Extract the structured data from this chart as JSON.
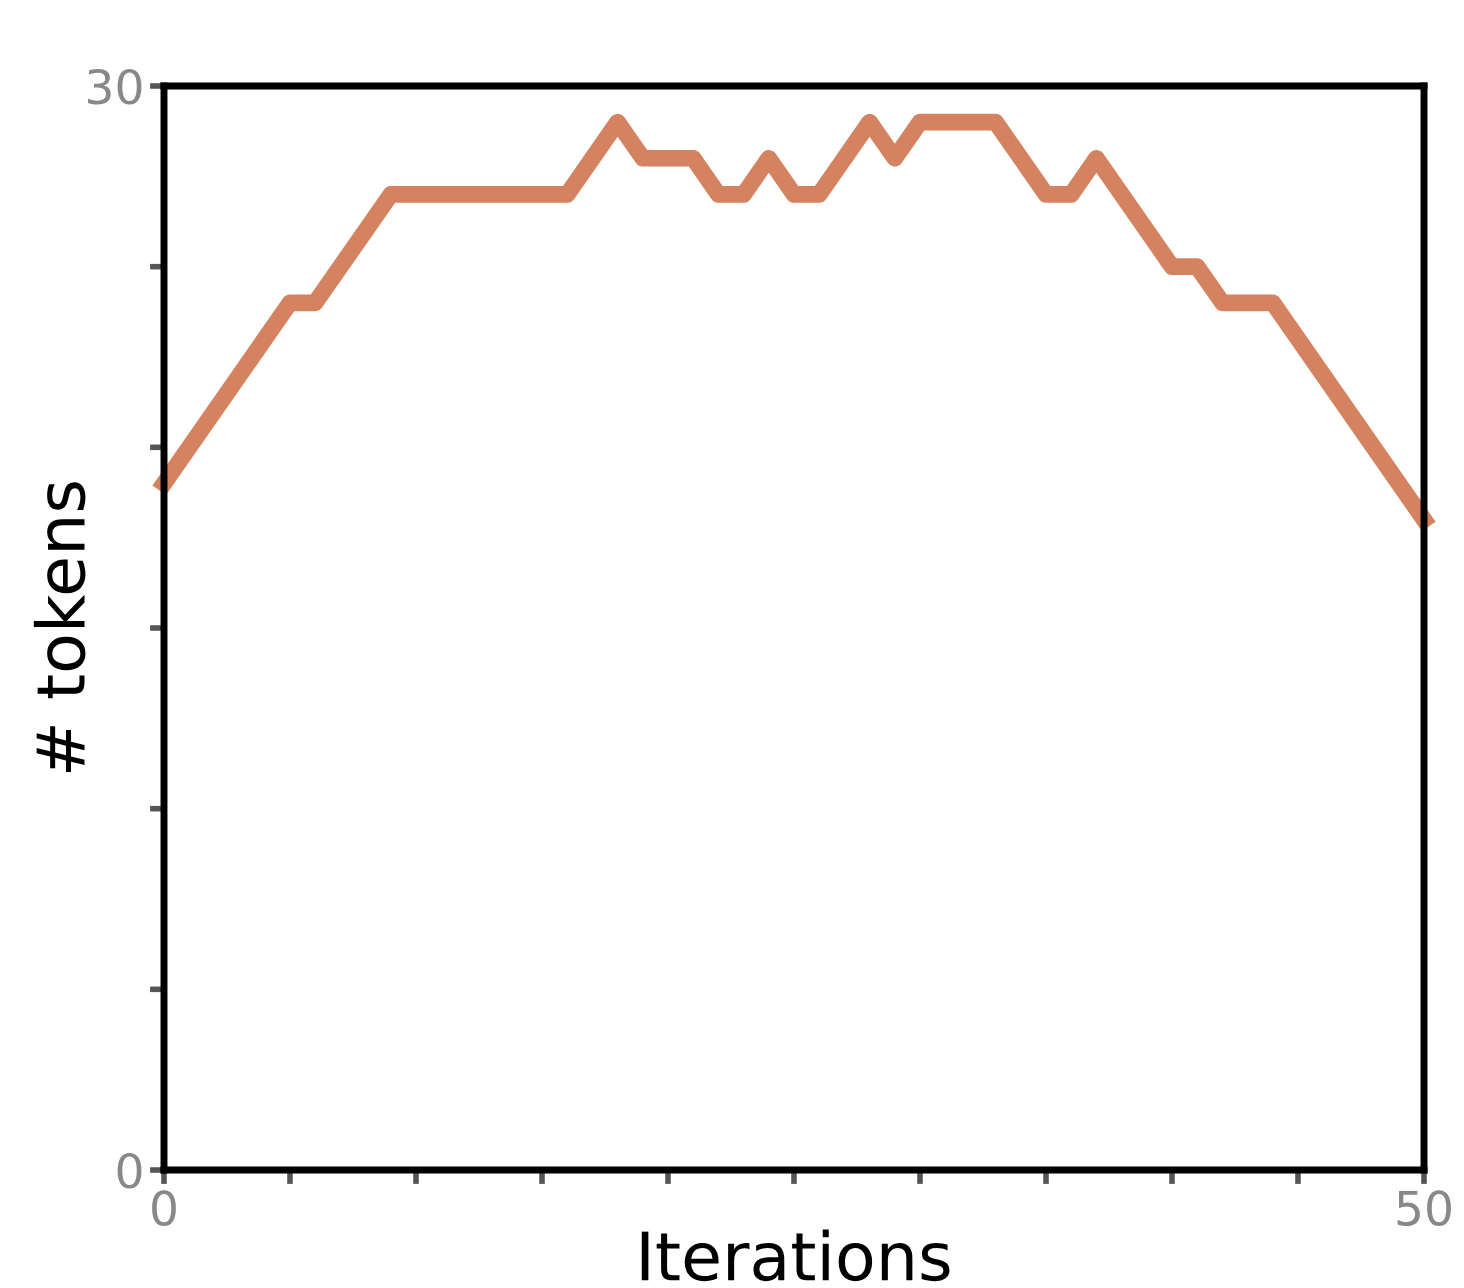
{
  "chart_data": {
    "type": "line",
    "xlabel": "Iterations",
    "ylabel": "# tokens",
    "series": [
      {
        "color": "#d4825f",
        "x": [
          0,
          5,
          6,
          9,
          16,
          18,
          19,
          21,
          22,
          23,
          24,
          25,
          26,
          28,
          29,
          30,
          33,
          35,
          36,
          37,
          40,
          41,
          42,
          44,
          50
        ],
        "values": [
          19,
          24,
          24,
          27,
          27,
          29,
          28,
          28,
          27,
          27,
          28,
          27,
          27,
          29,
          28,
          29,
          29,
          27,
          27,
          28,
          25,
          25,
          24,
          24,
          18
        ]
      }
    ],
    "xlim": [
      0,
      50
    ],
    "ylim": [
      0,
      30
    ],
    "xticks": [
      0,
      {
        "value": 5,
        "label": null
      },
      {
        "value": 10,
        "label": null
      },
      {
        "value": 15,
        "label": null
      },
      {
        "value": 20,
        "label": null
      },
      {
        "value": 25,
        "label": null
      },
      {
        "value": 30,
        "label": null
      },
      {
        "value": 35,
        "label": null
      },
      {
        "value": 40,
        "label": null
      },
      {
        "value": 45,
        "label": null
      },
      50
    ],
    "yticks": [
      0,
      {
        "value": 5,
        "label": null
      },
      {
        "value": 10,
        "label": null
      },
      {
        "value": 15,
        "label": null
      },
      {
        "value": 20,
        "label": null
      },
      {
        "value": 25,
        "label": null
      },
      30
    ],
    "grid": false,
    "legend": false,
    "marker": "none",
    "line_style": "solid"
  }
}
